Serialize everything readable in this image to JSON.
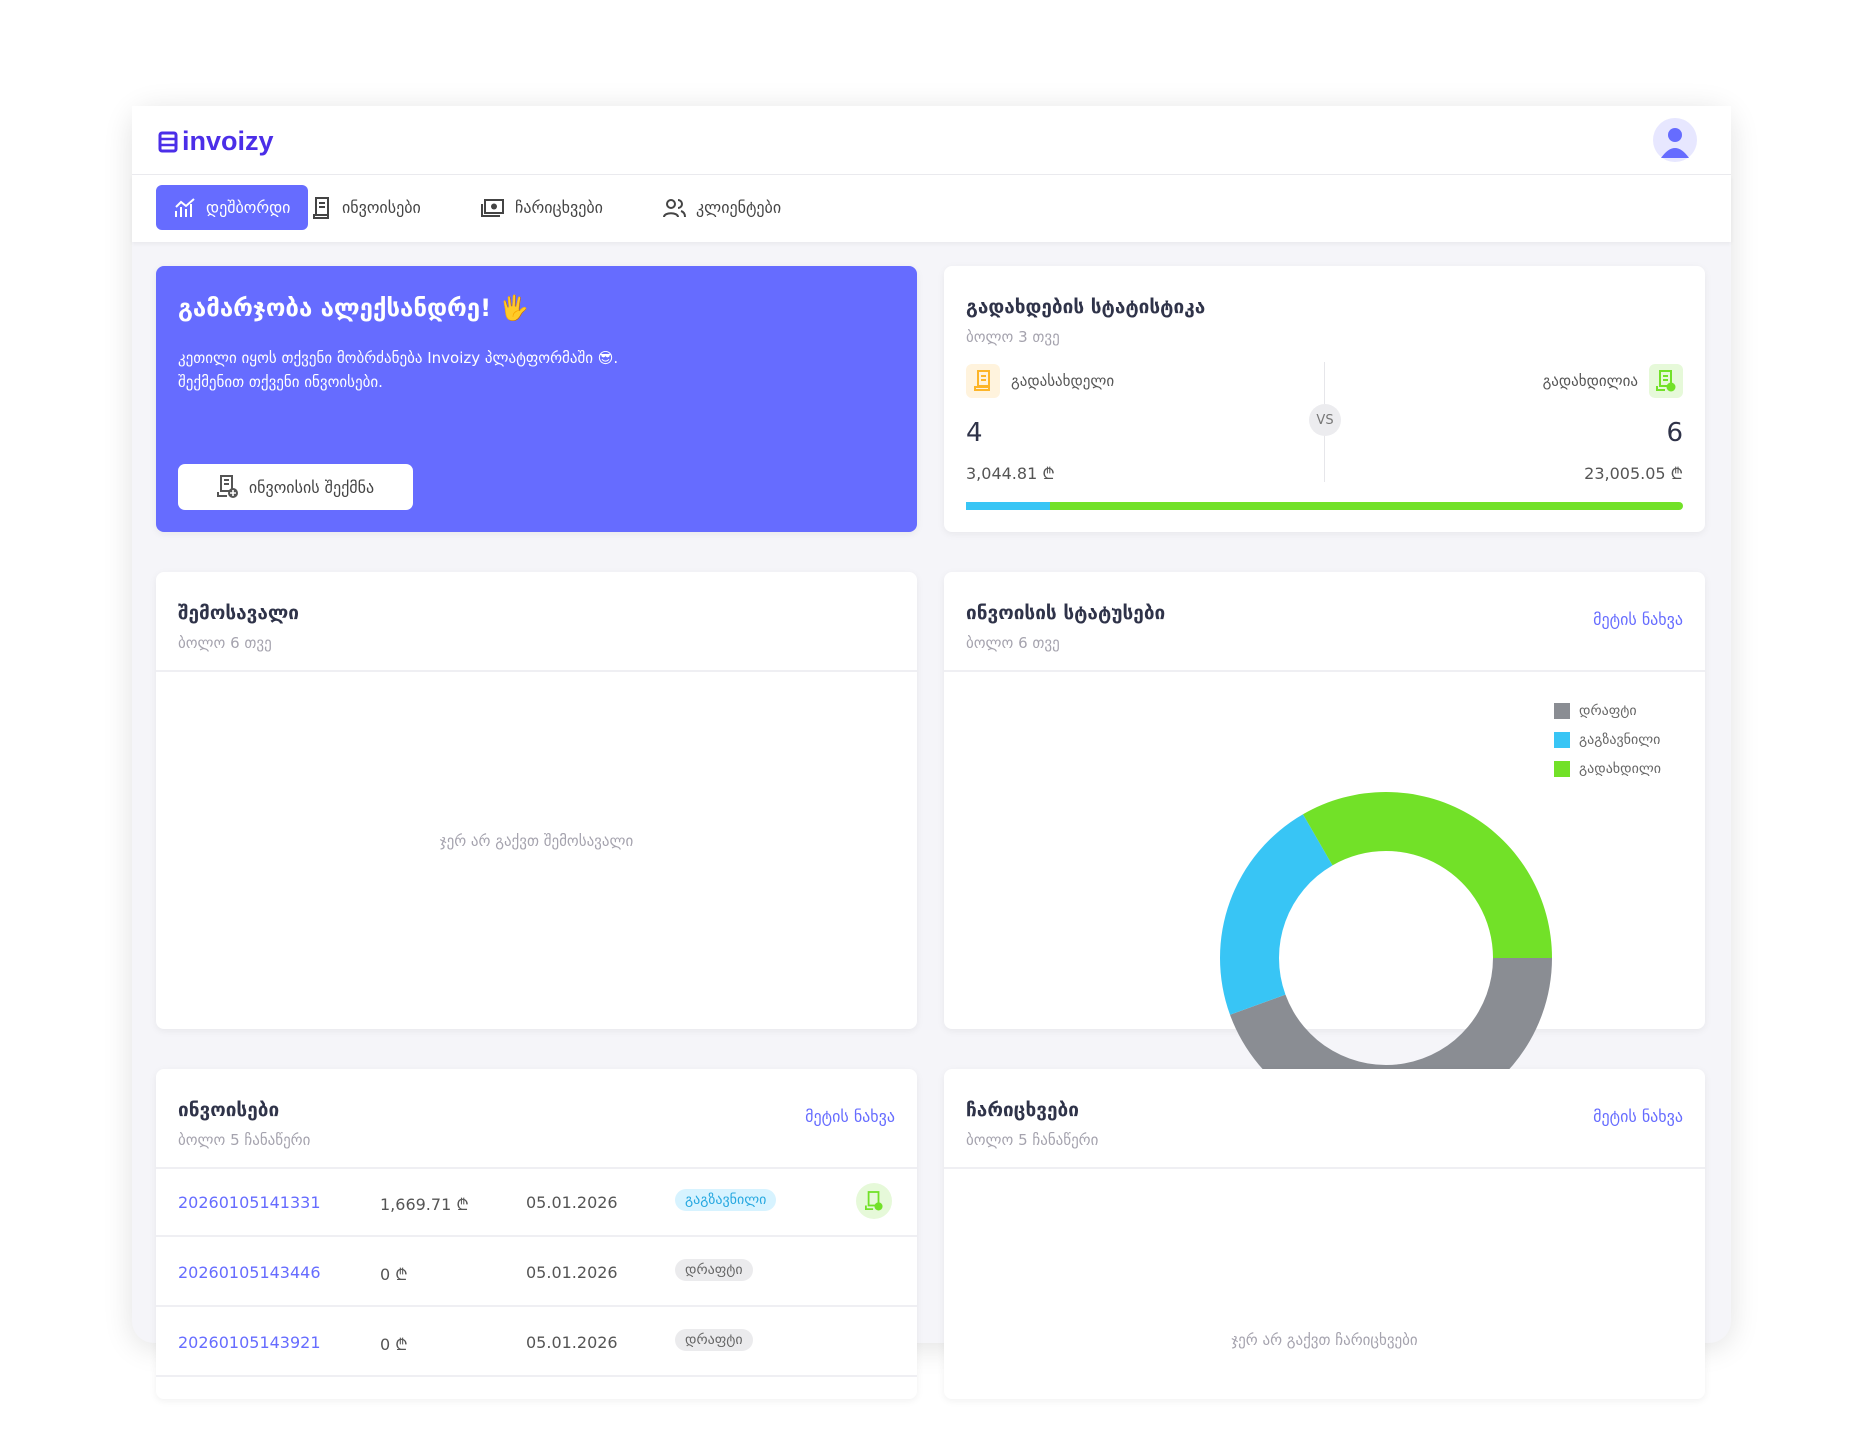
{
  "app": {
    "logo": "invoizy"
  },
  "nav": [
    {
      "label": "დეშბორდი",
      "icon": "chart-icon",
      "active": true
    },
    {
      "label": "ინვოისები",
      "icon": "receipt-icon"
    },
    {
      "label": "ჩარიცხვები",
      "icon": "money-icon"
    },
    {
      "label": "კლიენტები",
      "icon": "users-icon"
    }
  ],
  "welcome": {
    "title": "გამარჯობა ალექსანდრე! 🖐",
    "line1": "კეთილი იყოს თქვენი მობრძანება Invoizy პლატფორმაში 😎.",
    "line2": "შექმენით თქვენი ინვოისები.",
    "button": "ინვოისის შექმნა"
  },
  "stats": {
    "title": "გადახდების სტატისტიკა",
    "subtitle": "ბოლო 3 თვე",
    "left_label": "გადასახდელი",
    "left_count": "4",
    "left_amount": "3,044.81 ₾",
    "right_label": "გადახდილია",
    "right_count": "6",
    "right_amount": "23,005.05 ₾",
    "vs": "VS",
    "progress_unpaid_pct": 11.7,
    "colors": {
      "unpaid": "#38c5f5",
      "paid": "#72e128"
    }
  },
  "income": {
    "title": "შემოსავალი",
    "subtitle": "ბოლო 6 თვე",
    "empty": "ჯერ არ გაქვთ შემოსავალი"
  },
  "statuses": {
    "title": "ინვოისის სტატუსები",
    "subtitle": "ბოლო 6 თვე",
    "more": "მეტის ნახვა"
  },
  "chart_data": {
    "type": "pie",
    "donut": true,
    "series": [
      {
        "name": "დრაფტი",
        "value": 4,
        "color": "#8a8d93"
      },
      {
        "name": "გაგზავნილი",
        "value": 2,
        "color": "#38c5f5"
      },
      {
        "name": "გადახდილი",
        "value": 3,
        "color": "#72e128"
      }
    ],
    "legend": "top-right"
  },
  "invoices": {
    "title": "ინვოისები",
    "subtitle": "ბოლო 5 ჩანაწერი",
    "more": "მეტის ნახვა",
    "rows": [
      {
        "id": "20260105141331",
        "amount": "1,669.71 ₾",
        "date": "05.01.2026",
        "status": "გაგზავნილი",
        "status_type": "sent",
        "paid_icon": true
      },
      {
        "id": "20260105143446",
        "amount": "0 ₾",
        "date": "05.01.2026",
        "status": "დრაფტი",
        "status_type": "draft"
      },
      {
        "id": "20260105143921",
        "amount": "0 ₾",
        "date": "05.01.2026",
        "status": "დრაფტი",
        "status_type": "draft"
      }
    ]
  },
  "payments": {
    "title": "ჩარიცხვები",
    "subtitle": "ბოლო 5 ჩანაწერი",
    "more": "მეტის ნახვა",
    "empty": "ჯერ არ გაქვთ ჩარიცხვები"
  }
}
